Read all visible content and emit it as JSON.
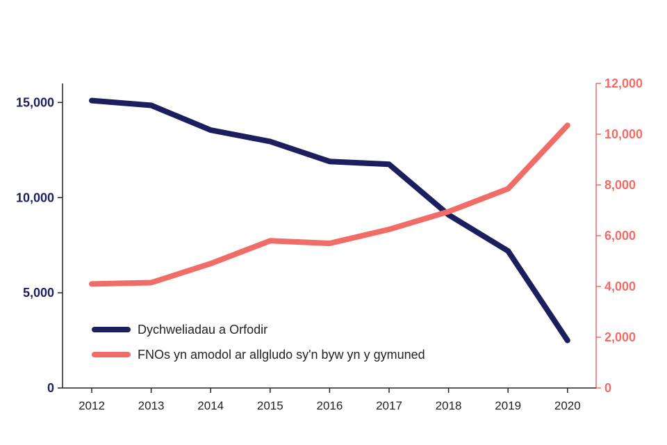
{
  "chart_data": {
    "type": "line",
    "categories": [
      "2012",
      "2013",
      "2014",
      "2015",
      "2016",
      "2017",
      "2018",
      "2019",
      "2020"
    ],
    "series": [
      {
        "name": "Dychweliadau a Orfodir",
        "axis": "left",
        "color": "#1b1f5e",
        "values": [
          15100,
          14850,
          13550,
          12950,
          11900,
          11750,
          9100,
          7200,
          2500
        ]
      },
      {
        "name": "FNOs yn amodol ar allgludo sy'n byw yn y gymuned",
        "axis": "right",
        "color": "#f06c66",
        "values": [
          4100,
          4150,
          4900,
          5800,
          5700,
          6250,
          6950,
          7850,
          10350
        ]
      }
    ],
    "y_left": {
      "range": [
        0,
        16000
      ],
      "ticks": [
        0,
        5000,
        10000,
        15000
      ],
      "tick_labels": [
        "0",
        "5,000",
        "10,000",
        "15,000"
      ],
      "color": "#1b1f5e"
    },
    "y_right": {
      "range": [
        0,
        12000
      ],
      "ticks": [
        0,
        2000,
        4000,
        6000,
        8000,
        10000,
        12000
      ],
      "tick_labels": [
        "0",
        "2,000",
        "4,000",
        "6,000",
        "8,000",
        "10,000",
        "12,000"
      ],
      "color": "#f06c66"
    },
    "grid": false,
    "legend_position": "bottom-left"
  }
}
